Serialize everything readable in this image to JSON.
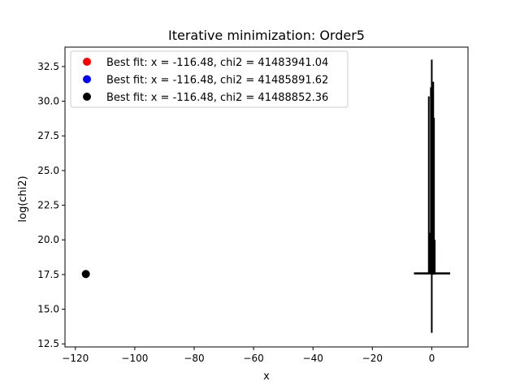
{
  "chart_data": {
    "type": "scatter",
    "title": "Iterative minimization: Order5",
    "xlabel": "x",
    "ylabel": "log(chi2)",
    "xlim": [
      -123.5,
      12.2
    ],
    "ylim": [
      12.28,
      33.9
    ],
    "x_ticks": [
      -120,
      -100,
      -80,
      -60,
      -40,
      -20,
      0
    ],
    "y_ticks": [
      12.5,
      15.0,
      17.5,
      20.0,
      22.5,
      25.0,
      27.5,
      30.0,
      32.5
    ],
    "x_tick_labels": [
      "−120",
      "−100",
      "−80",
      "−60",
      "−40",
      "−20",
      "0"
    ],
    "y_tick_labels": [
      "12.5",
      "15.0",
      "17.5",
      "20.0",
      "22.5",
      "25.0",
      "27.5",
      "30.0",
      "32.5"
    ],
    "grid": false,
    "legend_position": "upper-left",
    "legend": [
      {
        "label": "Best fit: x = -116.48, chi2 = 41483941.04",
        "color": "#ff0000"
      },
      {
        "label": "Best fit: x = -116.48, chi2 = 41485891.62",
        "color": "#0000ff"
      },
      {
        "label": "Best fit: x = -116.48, chi2 = 41488852.36",
        "color": "#000000"
      }
    ],
    "best_fit_point": {
      "x": -116.48,
      "y": 17.54,
      "color": "#000000"
    },
    "vertical_segments": [
      {
        "x": -1.0,
        "y1": 17.55,
        "y2": 30.35
      },
      {
        "x": -0.55,
        "y1": 17.6,
        "y2": 20.5
      },
      {
        "x": -0.3,
        "y1": 17.55,
        "y2": 31.0
      },
      {
        "x": 0.0,
        "y1": 13.3,
        "y2": 33.0
      },
      {
        "x": 0.25,
        "y1": 17.5,
        "y2": 30.6
      },
      {
        "x": 0.5,
        "y1": 17.5,
        "y2": 31.4
      },
      {
        "x": 0.75,
        "y1": 17.6,
        "y2": 28.8
      },
      {
        "x": 1.0,
        "y1": 17.5,
        "y2": 20.0
      }
    ],
    "horizontal_segments": [
      {
        "y": 17.58,
        "x1": -6.0,
        "x2": 6.2
      }
    ]
  }
}
